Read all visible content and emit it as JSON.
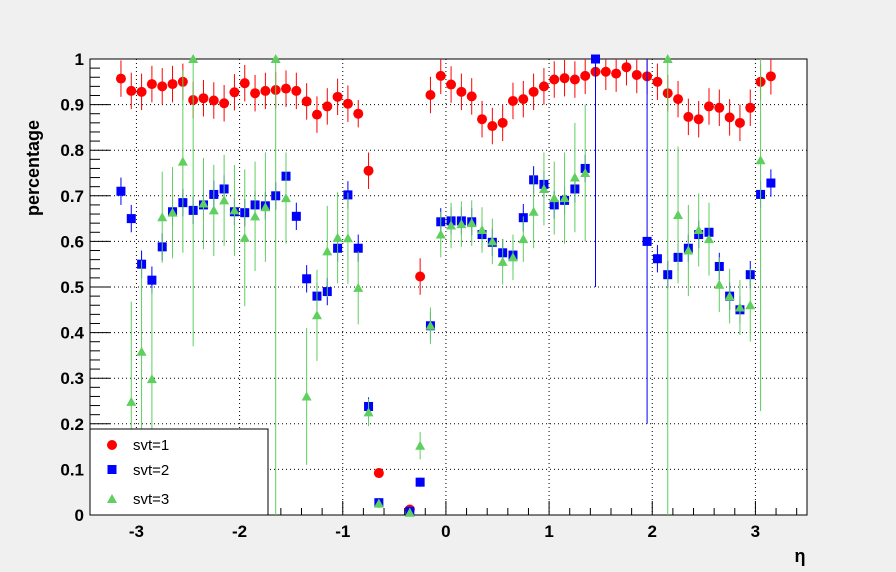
{
  "chart_data": {
    "type": "scatter",
    "xlabel": "η",
    "ylabel": "percentage",
    "xlim": [
      -3.45,
      3.5
    ],
    "ylim": [
      0,
      1
    ],
    "grid": true,
    "legend_position": "bottom-left",
    "x_ticks": [
      "-3",
      "-2",
      "-1",
      "0",
      "1",
      "2",
      "3"
    ],
    "x_tick_values": [
      -3,
      -2,
      -1,
      0,
      1,
      2,
      3
    ],
    "y_ticks": [
      "0",
      "0.1",
      "0.2",
      "0.3",
      "0.4",
      "0.5",
      "0.6",
      "0.7",
      "0.8",
      "0.9",
      "1"
    ],
    "y_tick_values": [
      0,
      0.1,
      0.2,
      0.3,
      0.4,
      0.5,
      0.6,
      0.7,
      0.8,
      0.9,
      1
    ],
    "series": [
      {
        "name": "svt=1",
        "color": "#ff0000",
        "marker": "circle",
        "points": [
          [
            -3.15,
            0.957,
            0.04
          ],
          [
            -3.05,
            0.93,
            0.04
          ],
          [
            -2.95,
            0.928,
            0.04
          ],
          [
            -2.85,
            0.945,
            0.04
          ],
          [
            -2.75,
            0.94,
            0.04
          ],
          [
            -2.65,
            0.945,
            0.04
          ],
          [
            -2.55,
            0.95,
            0.04
          ],
          [
            -2.45,
            0.91,
            0.04
          ],
          [
            -2.35,
            0.914,
            0.04
          ],
          [
            -2.25,
            0.909,
            0.04
          ],
          [
            -2.15,
            0.903,
            0.04
          ],
          [
            -2.05,
            0.927,
            0.04
          ],
          [
            -1.95,
            0.947,
            0.04
          ],
          [
            -1.85,
            0.925,
            0.04
          ],
          [
            -1.75,
            0.93,
            0.04
          ],
          [
            -1.65,
            0.932,
            0.04
          ],
          [
            -1.55,
            0.935,
            0.04
          ],
          [
            -1.45,
            0.93,
            0.04
          ],
          [
            -1.35,
            0.907,
            0.04
          ],
          [
            -1.25,
            0.878,
            0.04
          ],
          [
            -1.15,
            0.896,
            0.04
          ],
          [
            -1.05,
            0.917,
            0.04
          ],
          [
            -0.95,
            0.902,
            0.04
          ],
          [
            -0.85,
            0.88,
            0.03
          ],
          [
            -0.75,
            0.755,
            0.04
          ],
          [
            -0.65,
            0.092,
            0.01
          ],
          [
            -0.35,
            0.012,
            0.01
          ],
          [
            -0.25,
            0.523,
            0.04
          ],
          [
            -0.15,
            0.921,
            0.04
          ],
          [
            -0.05,
            0.963,
            0.04
          ],
          [
            0.05,
            0.944,
            0.04
          ],
          [
            0.15,
            0.928,
            0.04
          ],
          [
            0.25,
            0.918,
            0.04
          ],
          [
            0.35,
            0.868,
            0.04
          ],
          [
            0.45,
            0.853,
            0.04
          ],
          [
            0.55,
            0.86,
            0.04
          ],
          [
            0.65,
            0.908,
            0.04
          ],
          [
            0.75,
            0.912,
            0.04
          ],
          [
            0.85,
            0.928,
            0.04
          ],
          [
            0.95,
            0.94,
            0.04
          ],
          [
            1.05,
            0.955,
            0.04
          ],
          [
            1.15,
            0.958,
            0.04
          ],
          [
            1.25,
            0.955,
            0.04
          ],
          [
            1.35,
            0.963,
            0.04
          ],
          [
            1.45,
            0.972,
            0.04
          ],
          [
            1.55,
            0.972,
            0.04
          ],
          [
            1.65,
            0.968,
            0.04
          ],
          [
            1.75,
            0.982,
            0.04
          ],
          [
            1.85,
            0.965,
            0.04
          ],
          [
            1.95,
            0.962,
            0.04
          ],
          [
            2.05,
            0.95,
            0.04
          ],
          [
            2.15,
            0.925,
            0.04
          ],
          [
            2.25,
            0.912,
            0.04
          ],
          [
            2.35,
            0.873,
            0.04
          ],
          [
            2.45,
            0.868,
            0.04
          ],
          [
            2.55,
            0.896,
            0.04
          ],
          [
            2.65,
            0.893,
            0.04
          ],
          [
            2.75,
            0.872,
            0.04
          ],
          [
            2.85,
            0.86,
            0.04
          ],
          [
            2.95,
            0.893,
            0.04
          ],
          [
            3.05,
            0.95,
            0.04
          ],
          [
            3.15,
            0.962,
            0.04
          ]
        ]
      },
      {
        "name": "svt=2",
        "color": "#0000ff",
        "marker": "square",
        "points": [
          [
            -3.15,
            0.71,
            0.03
          ],
          [
            -3.05,
            0.65,
            0.03
          ],
          [
            -2.95,
            0.55,
            0.03
          ],
          [
            -2.85,
            0.515,
            0.03
          ],
          [
            -2.75,
            0.588,
            0.03
          ],
          [
            -2.65,
            0.665,
            0.03
          ],
          [
            -2.55,
            0.685,
            0.03
          ],
          [
            -2.45,
            0.668,
            0.03
          ],
          [
            -2.35,
            0.68,
            0.03
          ],
          [
            -2.25,
            0.703,
            0.03
          ],
          [
            -2.15,
            0.715,
            0.03
          ],
          [
            -2.05,
            0.665,
            0.03
          ],
          [
            -1.95,
            0.663,
            0.03
          ],
          [
            -1.85,
            0.68,
            0.03
          ],
          [
            -1.75,
            0.678,
            0.03
          ],
          [
            -1.65,
            0.7,
            0.03
          ],
          [
            -1.55,
            0.743,
            0.03
          ],
          [
            -1.45,
            0.655,
            0.03
          ],
          [
            -1.35,
            0.518,
            0.03
          ],
          [
            -1.25,
            0.48,
            0.03
          ],
          [
            -1.15,
            0.49,
            0.03
          ],
          [
            -1.05,
            0.585,
            0.03
          ],
          [
            -0.95,
            0.702,
            0.03
          ],
          [
            -0.85,
            0.585,
            0.03
          ],
          [
            -0.75,
            0.238,
            0.02
          ],
          [
            -0.65,
            0.027,
            0.01
          ],
          [
            -0.35,
            0.008,
            0.01
          ],
          [
            -0.25,
            0.072,
            0.01
          ],
          [
            -0.15,
            0.415,
            0.03
          ],
          [
            -0.05,
            0.643,
            0.03
          ],
          [
            0.05,
            0.645,
            0.03
          ],
          [
            0.15,
            0.645,
            0.03
          ],
          [
            0.25,
            0.643,
            0.03
          ],
          [
            0.35,
            0.615,
            0.03
          ],
          [
            0.45,
            0.598,
            0.03
          ],
          [
            0.55,
            0.575,
            0.03
          ],
          [
            0.65,
            0.57,
            0.03
          ],
          [
            0.75,
            0.652,
            0.03
          ],
          [
            0.85,
            0.735,
            0.03
          ],
          [
            0.95,
            0.725,
            0.03
          ],
          [
            1.05,
            0.68,
            0.03
          ],
          [
            1.15,
            0.69,
            0.03
          ],
          [
            1.25,
            0.715,
            0.03
          ],
          [
            1.35,
            0.76,
            0.03
          ],
          [
            1.45,
            1.0,
            0.5
          ],
          [
            1.95,
            0.6,
            0.4
          ],
          [
            2.05,
            0.562,
            0.03
          ],
          [
            2.15,
            0.527,
            0.03
          ],
          [
            2.25,
            0.565,
            0.03
          ],
          [
            2.35,
            0.585,
            0.03
          ],
          [
            2.45,
            0.615,
            0.03
          ],
          [
            2.55,
            0.62,
            0.03
          ],
          [
            2.65,
            0.545,
            0.03
          ],
          [
            2.75,
            0.48,
            0.03
          ],
          [
            2.85,
            0.45,
            0.03
          ],
          [
            2.95,
            0.527,
            0.03
          ],
          [
            3.05,
            0.703,
            0.03
          ],
          [
            3.15,
            0.728,
            0.03
          ]
        ]
      },
      {
        "name": "svt=3",
        "color": "#5fcf5f",
        "marker": "triangle",
        "points": [
          [
            -3.05,
            0.248,
            0.22
          ],
          [
            -2.95,
            0.358,
            0.2
          ],
          [
            -2.85,
            0.298,
            0.2
          ],
          [
            -2.75,
            0.653,
            0.1
          ],
          [
            -2.65,
            0.663,
            0.1
          ],
          [
            -2.55,
            0.775,
            0.2
          ],
          [
            -2.45,
            1.0,
            0.63
          ],
          [
            -2.35,
            0.683,
            0.1
          ],
          [
            -2.25,
            0.668,
            0.1
          ],
          [
            -2.15,
            0.69,
            0.1
          ],
          [
            -2.05,
            0.668,
            0.1
          ],
          [
            -1.95,
            0.608,
            0.15
          ],
          [
            -1.85,
            0.655,
            0.12
          ],
          [
            -1.75,
            0.675,
            0.12
          ],
          [
            -1.65,
            1.0,
            1.0
          ],
          [
            -1.55,
            0.695,
            0.1
          ],
          [
            -1.35,
            0.26,
            0.15
          ],
          [
            -1.25,
            0.438,
            0.1
          ],
          [
            -1.15,
            0.578,
            0.1
          ],
          [
            -1.05,
            0.608,
            0.1
          ],
          [
            -0.95,
            0.607,
            0.1
          ],
          [
            -0.85,
            0.498,
            0.08
          ],
          [
            -0.75,
            0.225,
            0.03
          ],
          [
            -0.65,
            0.025,
            0.01
          ],
          [
            -0.35,
            0.005,
            0.01
          ],
          [
            -0.25,
            0.152,
            0.03
          ],
          [
            -0.15,
            0.415,
            0.04
          ],
          [
            -0.05,
            0.615,
            0.05
          ],
          [
            0.05,
            0.635,
            0.05
          ],
          [
            0.15,
            0.638,
            0.05
          ],
          [
            0.25,
            0.64,
            0.05
          ],
          [
            0.35,
            0.625,
            0.05
          ],
          [
            0.45,
            0.6,
            0.05
          ],
          [
            0.55,
            0.555,
            0.05
          ],
          [
            0.65,
            0.565,
            0.05
          ],
          [
            0.75,
            0.605,
            0.05
          ],
          [
            0.85,
            0.665,
            0.08
          ],
          [
            0.95,
            0.715,
            0.08
          ],
          [
            1.05,
            0.695,
            0.08
          ],
          [
            1.15,
            0.695,
            0.1
          ],
          [
            1.25,
            0.74,
            0.12
          ],
          [
            1.35,
            0.75,
            0.15
          ],
          [
            2.15,
            1.0,
            1.0
          ],
          [
            2.25,
            0.658,
            0.15
          ],
          [
            2.35,
            0.58,
            0.1
          ],
          [
            2.45,
            0.625,
            0.08
          ],
          [
            2.55,
            0.605,
            0.08
          ],
          [
            2.65,
            0.505,
            0.06
          ],
          [
            2.75,
            0.48,
            0.06
          ],
          [
            2.85,
            0.455,
            0.06
          ],
          [
            2.95,
            0.46,
            0.08
          ],
          [
            3.05,
            0.778,
            0.55
          ]
        ]
      }
    ]
  }
}
